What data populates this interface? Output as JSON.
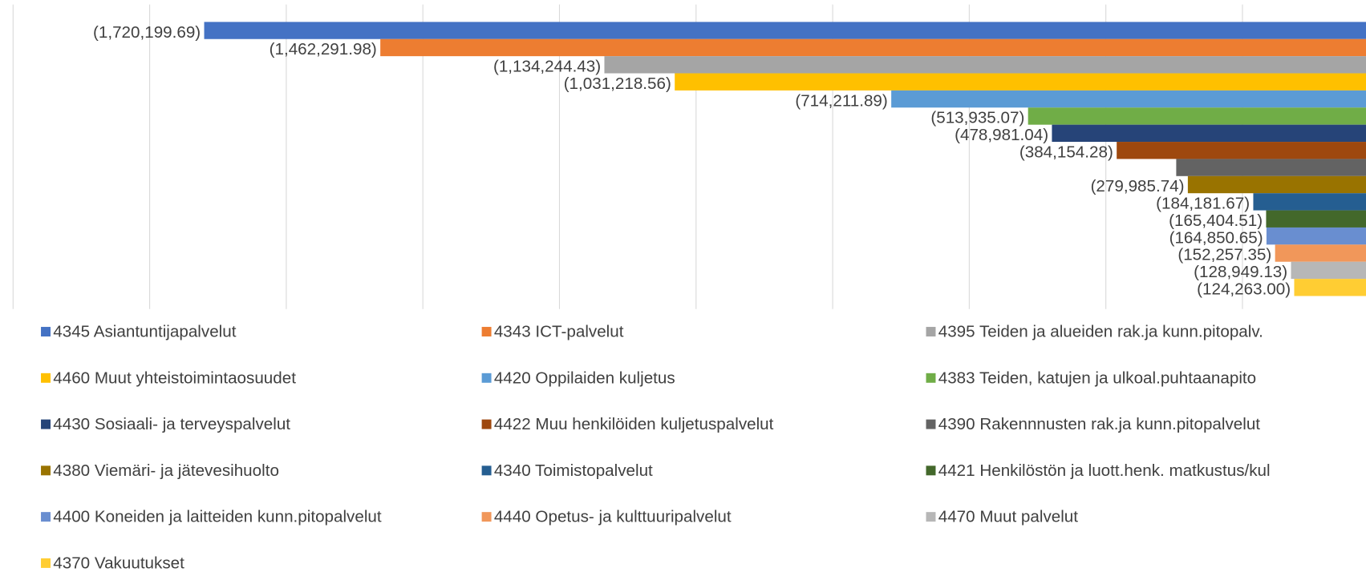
{
  "chart_data": {
    "type": "bar",
    "orientation": "horizontal",
    "categories": [
      "4345 Asiantuntijapalvelut",
      "4343 ICT-palvelut",
      "4395 Teiden ja alueiden rak.ja kunn.pitopalv.",
      "4460 Muut yhteistoimintaosuudet",
      "4420 Oppilaiden kuljetus",
      "4383 Teiden, katujen ja ulkoal.puhtaanapito",
      "4430 Sosiaali- ja terveyspalvelut",
      "4422 Muu henkilöiden kuljetuspalvelut",
      "4390 Rakennnusten rak.ja kunn.pitopalvelut",
      "4380 Viemäri- ja jätevesihuolto",
      "4340 Toimistopalvelut",
      "4421 Henkilöstön ja luott.henk. matkustus/kul",
      "4400 Koneiden ja laitteiden kunn.pitopalvelut",
      "4440 Opetus- ja kulttuuripalvelut",
      "4470 Muut palvelut",
      "4370 Vakuutukset"
    ],
    "values": [
      -1720199.69,
      -1462291.98,
      -1134244.43,
      -1031218.56,
      -714211.89,
      -513935.07,
      -478981.04,
      -384154.28,
      -297000,
      -279985.74,
      -184181.67,
      -165404.51,
      -164850.65,
      -152257.35,
      -128949.13,
      -124263.0
    ],
    "value_labels": [
      "(1,720,199.69)",
      "(1,462,291.98)",
      "(1,134,244.43)",
      "(1,031,218.56)",
      "(714,211.89)",
      "(513,935.07)",
      "(478,981.04)",
      "(384,154.28)",
      null,
      "(279,985.74)",
      "(184,181.67)",
      "(165,404.51)",
      "(164,850.65)",
      "(152,257.35)",
      "(128,949.13)",
      "(124,263.00)"
    ],
    "colors": [
      "#4472C4",
      "#ED7D31",
      "#A5A5A5",
      "#FFC000",
      "#5B9BD5",
      "#70AD47",
      "#264478",
      "#9E480E",
      "#636363",
      "#997300",
      "#255E91",
      "#43682B",
      "#698ED0",
      "#F1975A",
      "#B7B7B7",
      "#FFCD33"
    ],
    "xlim": [
      -2000000,
      0
    ],
    "xticks": [
      -2000000,
      -1800000,
      -1600000,
      -1400000,
      -1200000,
      -1000000,
      -800000,
      -600000,
      -400000,
      -200000,
      0
    ],
    "grid": true,
    "legend": "bottom"
  }
}
